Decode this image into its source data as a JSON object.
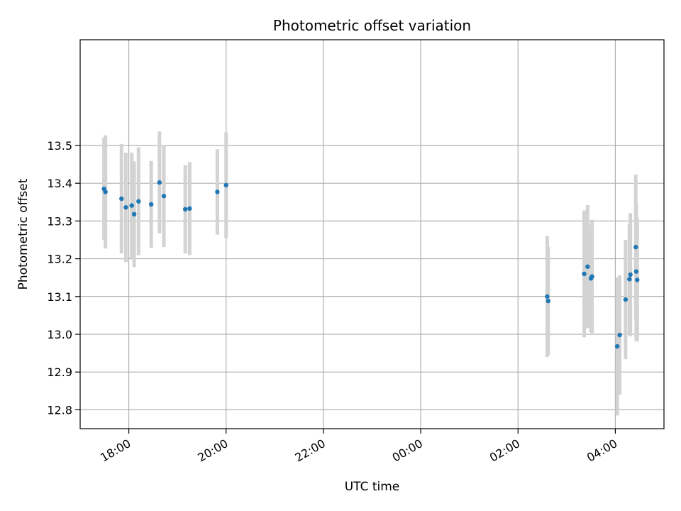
{
  "chart_data": {
    "type": "scatter",
    "title": "Photometric offset variation",
    "xlabel": "UTC time",
    "ylabel": "Photometric offset",
    "x_unit": "hours since 00:00 of the first day",
    "xlim": [
      17.0,
      29.0
    ],
    "ylim": [
      12.75,
      13.78
    ],
    "grid": true,
    "x_ticks": [
      {
        "value": 18,
        "label": "18:00"
      },
      {
        "value": 20,
        "label": "20:00"
      },
      {
        "value": 22,
        "label": "22:00"
      },
      {
        "value": 24,
        "label": "00:00"
      },
      {
        "value": 26,
        "label": "02:00"
      },
      {
        "value": 28,
        "label": "04:00"
      }
    ],
    "y_ticks": [
      {
        "value": 12.8,
        "label": "12.8"
      },
      {
        "value": 12.9,
        "label": "12.9"
      },
      {
        "value": 13.0,
        "label": "13.0"
      },
      {
        "value": 13.1,
        "label": "13.1"
      },
      {
        "value": 13.2,
        "label": "13.2"
      },
      {
        "value": 13.3,
        "label": "13.3"
      },
      {
        "value": 13.4,
        "label": "13.4"
      },
      {
        "value": 13.5,
        "label": "13.5"
      }
    ],
    "marker_color": "#1f77b4",
    "errorbar_color": "#d3d3d3",
    "series": [
      {
        "name": "offset",
        "points": [
          {
            "x": 17.49,
            "y": 13.385,
            "err": 0.135
          },
          {
            "x": 17.52,
            "y": 13.377,
            "err": 0.15
          },
          {
            "x": 17.85,
            "y": 13.359,
            "err": 0.145
          },
          {
            "x": 17.94,
            "y": 13.336,
            "err": 0.145
          },
          {
            "x": 18.06,
            "y": 13.341,
            "err": 0.14
          },
          {
            "x": 18.11,
            "y": 13.318,
            "err": 0.14
          },
          {
            "x": 18.2,
            "y": 13.352,
            "err": 0.143
          },
          {
            "x": 18.46,
            "y": 13.344,
            "err": 0.115
          },
          {
            "x": 18.63,
            "y": 13.402,
            "err": 0.135
          },
          {
            "x": 18.72,
            "y": 13.366,
            "err": 0.135
          },
          {
            "x": 19.16,
            "y": 13.331,
            "err": 0.117
          },
          {
            "x": 19.25,
            "y": 13.333,
            "err": 0.123
          },
          {
            "x": 19.82,
            "y": 13.377,
            "err": 0.113
          },
          {
            "x": 20.0,
            "y": 13.395,
            "err": 0.14
          },
          {
            "x": 26.6,
            "y": 13.1,
            "err": 0.16
          },
          {
            "x": 26.62,
            "y": 13.088,
            "err": 0.143
          },
          {
            "x": 27.36,
            "y": 13.16,
            "err": 0.168
          },
          {
            "x": 27.43,
            "y": 13.179,
            "err": 0.163
          },
          {
            "x": 27.5,
            "y": 13.148,
            "err": 0.142
          },
          {
            "x": 27.52,
            "y": 13.153,
            "err": 0.15
          },
          {
            "x": 28.04,
            "y": 12.968,
            "err": 0.183
          },
          {
            "x": 28.09,
            "y": 12.998,
            "err": 0.158
          },
          {
            "x": 28.21,
            "y": 13.092,
            "err": 0.158
          },
          {
            "x": 28.29,
            "y": 13.146,
            "err": 0.145
          },
          {
            "x": 28.31,
            "y": 13.158,
            "err": 0.163
          },
          {
            "x": 28.42,
            "y": 13.231,
            "err": 0.192
          },
          {
            "x": 28.43,
            "y": 13.166,
            "err": 0.183
          },
          {
            "x": 28.45,
            "y": 13.144,
            "err": 0.163
          }
        ]
      }
    ]
  }
}
